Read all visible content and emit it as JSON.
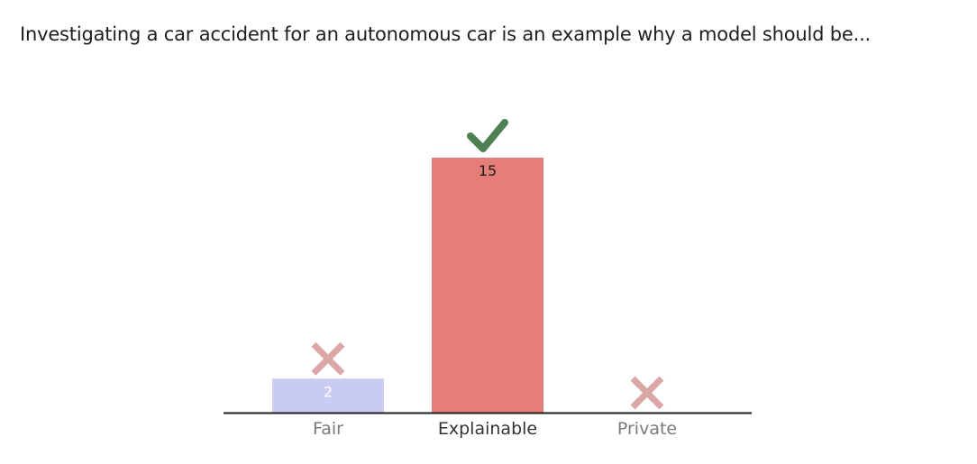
{
  "question": {
    "text": "Investigating a car accident for an autonomous car is an example why a model should be..."
  },
  "chart_data": {
    "type": "bar",
    "title": "",
    "xlabel": "",
    "ylabel": "",
    "categories": [
      "Fair",
      "Explainable",
      "Private"
    ],
    "values": [
      2,
      15,
      0
    ],
    "correct": [
      false,
      true,
      false
    ],
    "bar_colors": [
      "#c9cbf2",
      "#e57e77",
      "#c9cbf2"
    ],
    "value_label_colors": [
      "#ffffff",
      "#1e1e1e",
      "#ffffff"
    ],
    "category_label_colors": [
      "#7a7a7a",
      "#333333",
      "#7a7a7a"
    ],
    "check_color": "#4f8052",
    "cross_color": "#d9a8a6",
    "axis_color": "#1e1e1e",
    "ylim": [
      0,
      15
    ],
    "grid": false,
    "legend": "none"
  }
}
